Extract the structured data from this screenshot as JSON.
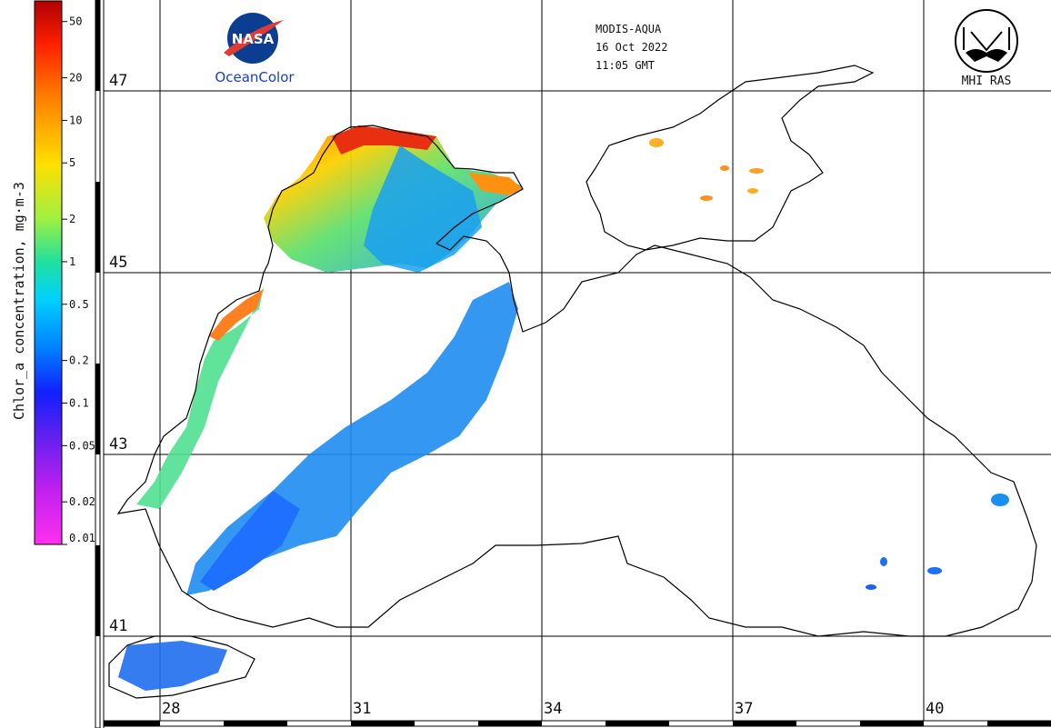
{
  "header": {
    "sensor": "MODIS-AQUA",
    "date": "16 Oct 2022",
    "time": "11:05 GMT"
  },
  "logos": {
    "nasa_text": "NASA",
    "oceancolor": "OceanColor",
    "mhi": "MHI RAS"
  },
  "colorbar": {
    "title": "Chlor_a concentration, mg·m-3",
    "ticks": [
      "50",
      "20",
      "10",
      "5",
      "2",
      "1",
      "0.5",
      "0.2",
      "0.1",
      "0.05",
      "0.02",
      "0.01"
    ]
  },
  "latitude_labels": [
    "47",
    "45",
    "43",
    "41"
  ],
  "longitude_labels": [
    "28",
    "31",
    "34",
    "37",
    "40"
  ],
  "colors": {
    "land_line": "#000000",
    "grid": "#000000",
    "nasa_blue": "#0b3d91",
    "nasa_red": "#e03c31",
    "oceancolor_blue": "#1a3fbf"
  }
}
